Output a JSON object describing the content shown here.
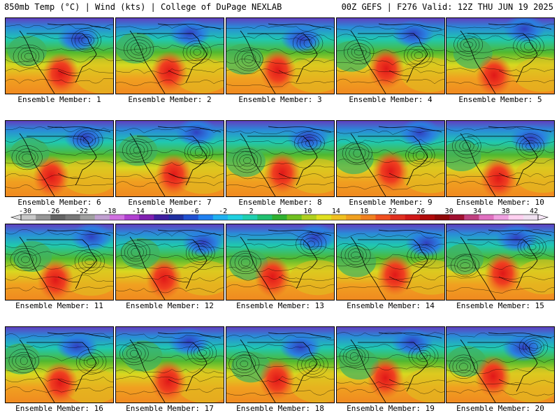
{
  "header": {
    "title_left": "850mb Temp (°C) | Wind (kts) | College of DuPage NEXLAB",
    "title_right": "00Z GEFS | F276 Valid: 12Z THU JUN 19 2025"
  },
  "panels": [
    {
      "caption": "Ensemble Member: 1"
    },
    {
      "caption": "Ensemble Member: 2"
    },
    {
      "caption": "Ensemble Member: 3"
    },
    {
      "caption": "Ensemble Member: 4"
    },
    {
      "caption": "Ensemble Member: 5"
    },
    {
      "caption": "Ensemble Member: 6"
    },
    {
      "caption": "Ensemble Member: 7"
    },
    {
      "caption": "Ensemble Member: 8"
    },
    {
      "caption": "Ensemble Member: 9"
    },
    {
      "caption": "Ensemble Member: 10"
    },
    {
      "caption": "Ensemble Member: 11"
    },
    {
      "caption": "Ensemble Member: 12"
    },
    {
      "caption": "Ensemble Member: 13"
    },
    {
      "caption": "Ensemble Member: 14"
    },
    {
      "caption": "Ensemble Member: 15"
    },
    {
      "caption": "Ensemble Member: 16"
    },
    {
      "caption": "Ensemble Member: 17"
    },
    {
      "caption": "Ensemble Member: 18"
    },
    {
      "caption": "Ensemble Member: 19"
    },
    {
      "caption": "Ensemble Member: 20"
    }
  ],
  "colorbar": {
    "ticks": [
      "-30",
      "-26",
      "-22",
      "-18",
      "-14",
      "-10",
      "-6",
      "-2",
      "2",
      "6",
      "10",
      "14",
      "18",
      "22",
      "26",
      "30",
      "34",
      "38",
      "42"
    ],
    "colors": [
      "#c8c8c8",
      "#969696",
      "#646464",
      "#787878",
      "#a0a0a0",
      "#c0a0d0",
      "#d070e0",
      "#b040d0",
      "#8020b0",
      "#4020a0",
      "#2030a0",
      "#2050d0",
      "#2080f0",
      "#20b0f0",
      "#20d0e0",
      "#20d0b0",
      "#20c070",
      "#30b030",
      "#70c020",
      "#b0d020",
      "#e0e020",
      "#f0c020",
      "#f0a020",
      "#f08020",
      "#f05020",
      "#e03020",
      "#d01818",
      "#b00a0a",
      "#900808",
      "#a01030",
      "#c04080",
      "#e070c0",
      "#f0a0e0",
      "#ffd0f0",
      "#f0e0f0"
    ]
  }
}
